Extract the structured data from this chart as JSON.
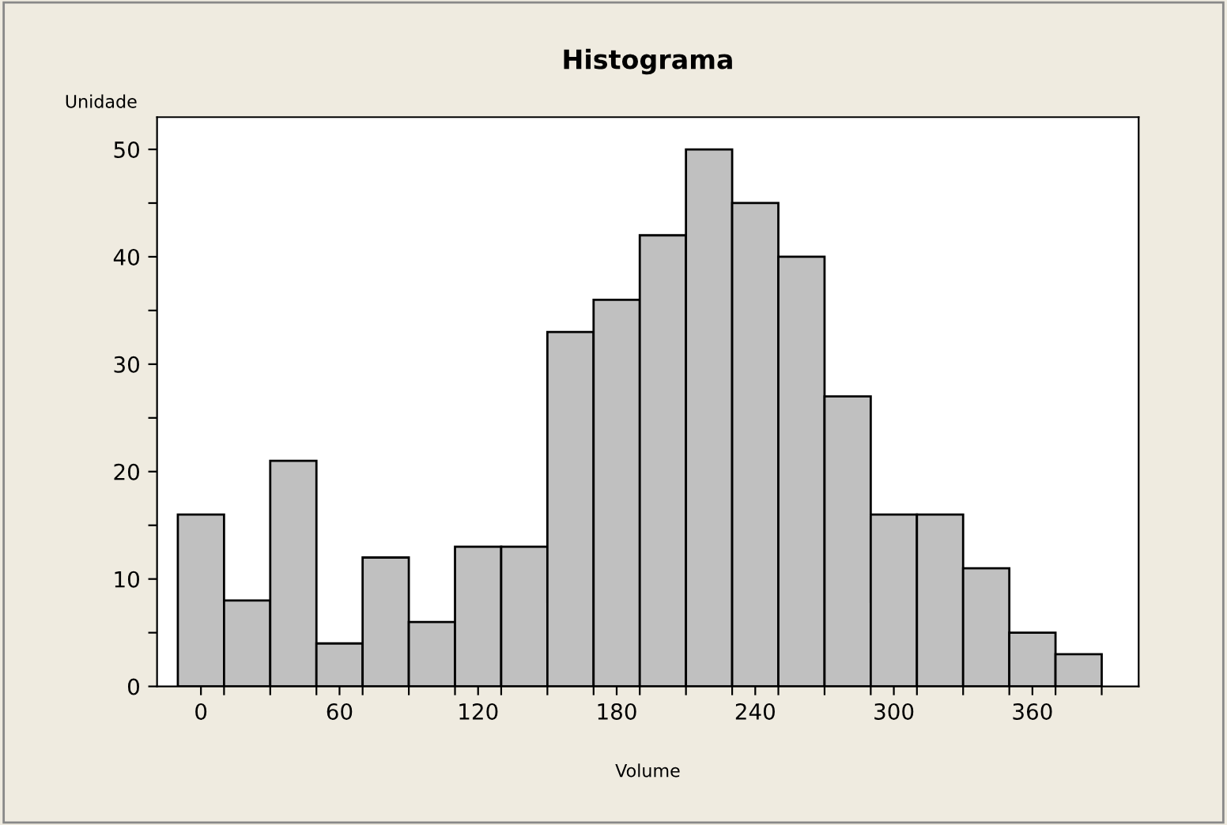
{
  "chart_data": {
    "type": "histogram",
    "title": "Histograma",
    "xlabel": "Volume",
    "ylabel": "Unidade",
    "bins": [
      -10,
      10,
      30,
      50,
      70,
      90,
      110,
      130,
      150,
      170,
      190,
      210,
      230,
      250,
      270,
      290,
      310,
      330,
      350,
      370,
      390
    ],
    "values": [
      16,
      8,
      21,
      4,
      12,
      6,
      13,
      13,
      33,
      36,
      42,
      50,
      45,
      40,
      27,
      16,
      16,
      11,
      5,
      3
    ],
    "color": "#c0c0c0",
    "xlim": [
      -19,
      406
    ],
    "ylim": [
      0,
      53
    ],
    "xticks": [
      0,
      60,
      120,
      180,
      240,
      300,
      360,
      {
        "value": 10,
        "label": null
      },
      {
        "value": 30,
        "label": null
      },
      {
        "value": 50,
        "label": null
      },
      {
        "value": 70,
        "label": null
      },
      {
        "value": 90,
        "label": null
      },
      {
        "value": 110,
        "label": null
      },
      {
        "value": 130,
        "label": null
      },
      {
        "value": 150,
        "label": null
      },
      {
        "value": 170,
        "label": null
      },
      {
        "value": 190,
        "label": null
      },
      {
        "value": 210,
        "label": null
      },
      {
        "value": 230,
        "label": null
      },
      {
        "value": 250,
        "label": null
      },
      {
        "value": 270,
        "label": null
      },
      {
        "value": 290,
        "label": null
      },
      {
        "value": 310,
        "label": null
      },
      {
        "value": 330,
        "label": null
      },
      {
        "value": 350,
        "label": null
      },
      {
        "value": 370,
        "label": null
      },
      {
        "value": 390,
        "label": null
      }
    ],
    "yticks": [
      0,
      10,
      20,
      30,
      40,
      50,
      {
        "value": 5,
        "label": null
      },
      {
        "value": 15,
        "label": null
      },
      {
        "value": 25,
        "label": null
      },
      {
        "value": 35,
        "label": null
      },
      {
        "value": 45,
        "label": null
      }
    ],
    "grid": false
  }
}
